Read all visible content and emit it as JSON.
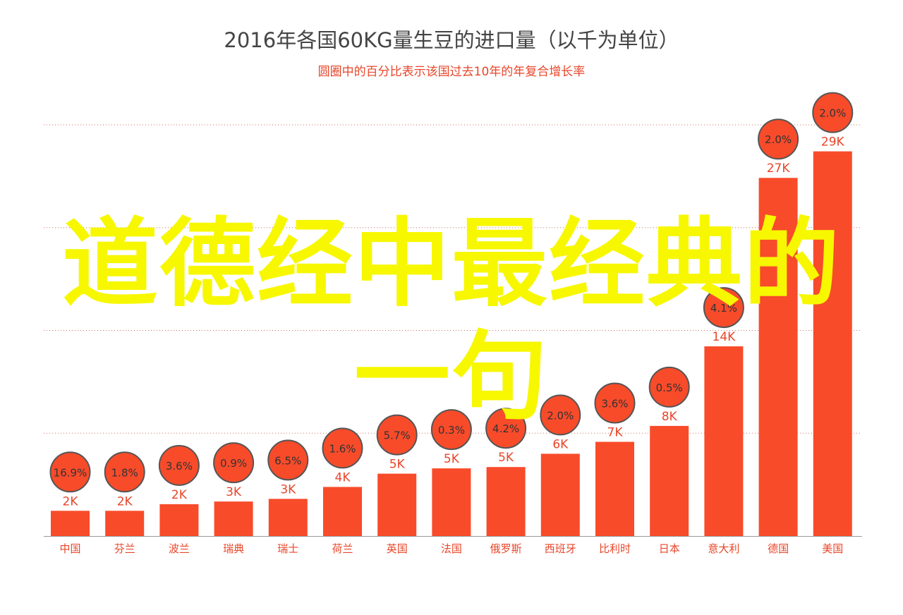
{
  "overlay": {
    "line1": "道德经中最经典的",
    "line2": "一句"
  },
  "chart_data": {
    "type": "bar",
    "title": "2016年各国60KG量生豆的进口量（以千为单位）",
    "subtitle": "圆圈中的百分比表示该国过去10年的年复合增长率",
    "categories": [
      "中国",
      "芬兰",
      "波兰",
      "瑞典",
      "瑞士",
      "荷兰",
      "英国",
      "法国",
      "俄罗斯",
      "西班牙",
      "比利时",
      "日本",
      "意大利",
      "德国",
      "美国"
    ],
    "values": [
      1.9,
      1.9,
      2.4,
      2.6,
      2.8,
      3.7,
      4.7,
      5.1,
      5.2,
      6.2,
      7.1,
      8.3,
      14.3,
      27.0,
      29.0
    ],
    "value_labels": [
      "2K",
      "2K",
      "2K",
      "3K",
      "3K",
      "4K",
      "5K",
      "5K",
      "5K",
      "6K",
      "7K",
      "8K",
      "14K",
      "27K",
      "29K"
    ],
    "growth_labels": [
      "16.9%",
      "1.8%",
      "3.6%",
      "0.9%",
      "6.5%",
      "1.6%",
      "5.7%",
      "0.3%",
      "4.2%",
      "2.0%",
      "3.6%",
      "0.5%",
      "4.1%",
      "2.0%",
      "2.0%"
    ],
    "ylim": [
      0,
      31
    ],
    "grid": true,
    "colors": {
      "bar": "#f84b2a",
      "circle_fill": "#f84b2a",
      "circle_stroke": "#555555",
      "circle_text": "#333333",
      "label": "#e8462a",
      "axis": "#999999",
      "grid": "#d07060"
    }
  }
}
